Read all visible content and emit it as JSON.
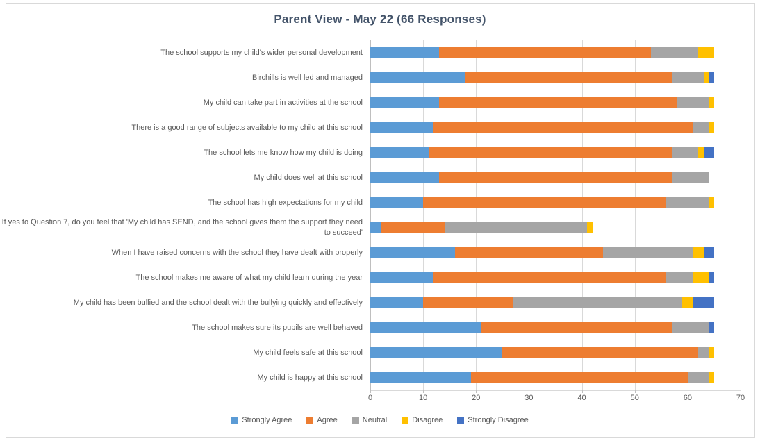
{
  "chart": {
    "title": "Parent View - May 22 (66 Responses)",
    "chart_data": {
      "type": "bar",
      "orientation": "horizontal",
      "stacked": true,
      "title": "Parent View - May 22 (66 Responses)",
      "xlabel": "",
      "ylabel": "",
      "xlim": [
        0,
        70
      ],
      "xticks": [
        0,
        10,
        20,
        30,
        40,
        50,
        60,
        70
      ],
      "grid": true,
      "legend_position": "bottom",
      "categories": [
        "The school supports my child's wider personal development",
        "Birchills is well led and managed",
        "My child can take part in activities at the school",
        "There is a good range of subjects available to my child at this school",
        "The school lets me know how my child is doing",
        "My child does well at this school",
        "The school has high expectations for my child",
        "If yes to Question 7, do you feel that 'My child has SEND, and the school gives them the support they need to succeed'",
        "When I have raised concerns with the school they have dealt with properly",
        "The school makes me aware of what my child learn during the year",
        "My child has been bullied and the school dealt with the bullying quickly and effectively",
        "The school makes sure its pupils are well behaved",
        "My child feels safe at this school",
        "My child is happy at this school"
      ],
      "series": [
        {
          "name": "Strongly Agree",
          "color": "#5B9BD5",
          "values": [
            13,
            18,
            13,
            12,
            11,
            13,
            10,
            2,
            16,
            12,
            10,
            21,
            25,
            19
          ]
        },
        {
          "name": "Agree",
          "color": "#ED7D31",
          "values": [
            40,
            39,
            45,
            49,
            46,
            44,
            46,
            12,
            28,
            44,
            17,
            36,
            37,
            41
          ]
        },
        {
          "name": "Neutral",
          "color": "#A5A5A5",
          "values": [
            9,
            6,
            6,
            3,
            5,
            7,
            8,
            27,
            17,
            5,
            32,
            7,
            2,
            4
          ]
        },
        {
          "name": "Disagree",
          "color": "#FFC000",
          "values": [
            3,
            1,
            1,
            1,
            1,
            0,
            1,
            1,
            2,
            3,
            2,
            0,
            1,
            1
          ]
        },
        {
          "name": "Strongly Disagree",
          "color": "#4472C4",
          "values": [
            0,
            1,
            0,
            0,
            2,
            0,
            0,
            0,
            2,
            1,
            4,
            1,
            0,
            0
          ]
        }
      ]
    }
  }
}
